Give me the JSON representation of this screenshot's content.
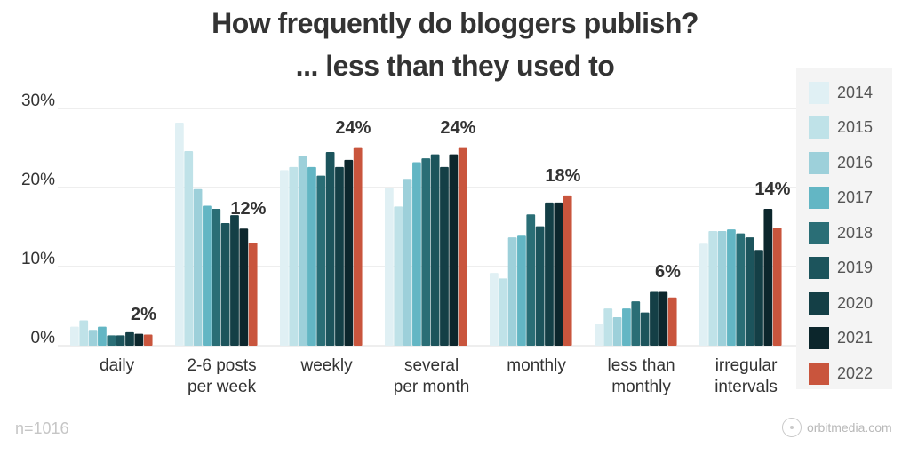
{
  "chart_data": {
    "type": "bar",
    "title": "How frequently do bloggers publish?",
    "subtitle": "... less than they used to",
    "xlabel": "",
    "ylabel": "",
    "ylim": [
      0,
      30
    ],
    "yticks": [
      "0%",
      "10%",
      "20%",
      "30%"
    ],
    "grid": true,
    "legend_position": "right",
    "categories": [
      "daily",
      "2-6 posts per week",
      "weekly",
      "several per month",
      "monthly",
      "less than monthly",
      "irregular intervals"
    ],
    "category_lines": [
      [
        "daily"
      ],
      [
        "2-6 posts",
        "per week"
      ],
      [
        "weekly"
      ],
      [
        "several",
        "per month"
      ],
      [
        "monthly"
      ],
      [
        "less than",
        "monthly"
      ],
      [
        "irregular",
        "intervals"
      ]
    ],
    "series": [
      {
        "name": "2014",
        "color": "#e0f0f4",
        "values": [
          2.4,
          28.2,
          22.2,
          20.0,
          9.2,
          2.7,
          12.9
        ]
      },
      {
        "name": "2015",
        "color": "#bfe2e8",
        "values": [
          3.2,
          24.6,
          22.6,
          17.6,
          8.5,
          4.7,
          14.5
        ]
      },
      {
        "name": "2016",
        "color": "#9dd0da",
        "values": [
          2.0,
          19.8,
          24.0,
          21.1,
          13.7,
          3.6,
          14.5
        ]
      },
      {
        "name": "2017",
        "color": "#63b6c4",
        "values": [
          2.4,
          17.7,
          22.6,
          23.2,
          13.9,
          4.7,
          14.7
        ]
      },
      {
        "name": "2018",
        "color": "#2a6e76",
        "values": [
          1.3,
          17.3,
          21.5,
          23.7,
          16.6,
          5.6,
          14.2
        ]
      },
      {
        "name": "2019",
        "color": "#1c545c",
        "values": [
          1.3,
          15.5,
          24.5,
          24.2,
          15.1,
          4.2,
          13.7
        ]
      },
      {
        "name": "2020",
        "color": "#143f46",
        "values": [
          1.7,
          16.5,
          22.6,
          22.6,
          18.1,
          6.8,
          12.1
        ]
      },
      {
        "name": "2021",
        "color": "#0c262c",
        "values": [
          1.5,
          14.8,
          23.5,
          24.2,
          18.1,
          6.8,
          17.3
        ]
      },
      {
        "name": "2022",
        "color": "#c9553d",
        "values": [
          1.4,
          13.0,
          25.1,
          25.1,
          19.0,
          6.1,
          14.9
        ]
      }
    ],
    "annotations": [
      "2%",
      "12%",
      "24%",
      "24%",
      "18%",
      "6%",
      "14%"
    ],
    "sample_size": "n=1016",
    "source": "orbitmedia.com"
  },
  "header": {
    "title_line1": "How frequently do bloggers publish?",
    "title_line2": "... less than they used to"
  },
  "footer": {
    "sample": "n=1016",
    "brand": "orbitmedia.com"
  }
}
